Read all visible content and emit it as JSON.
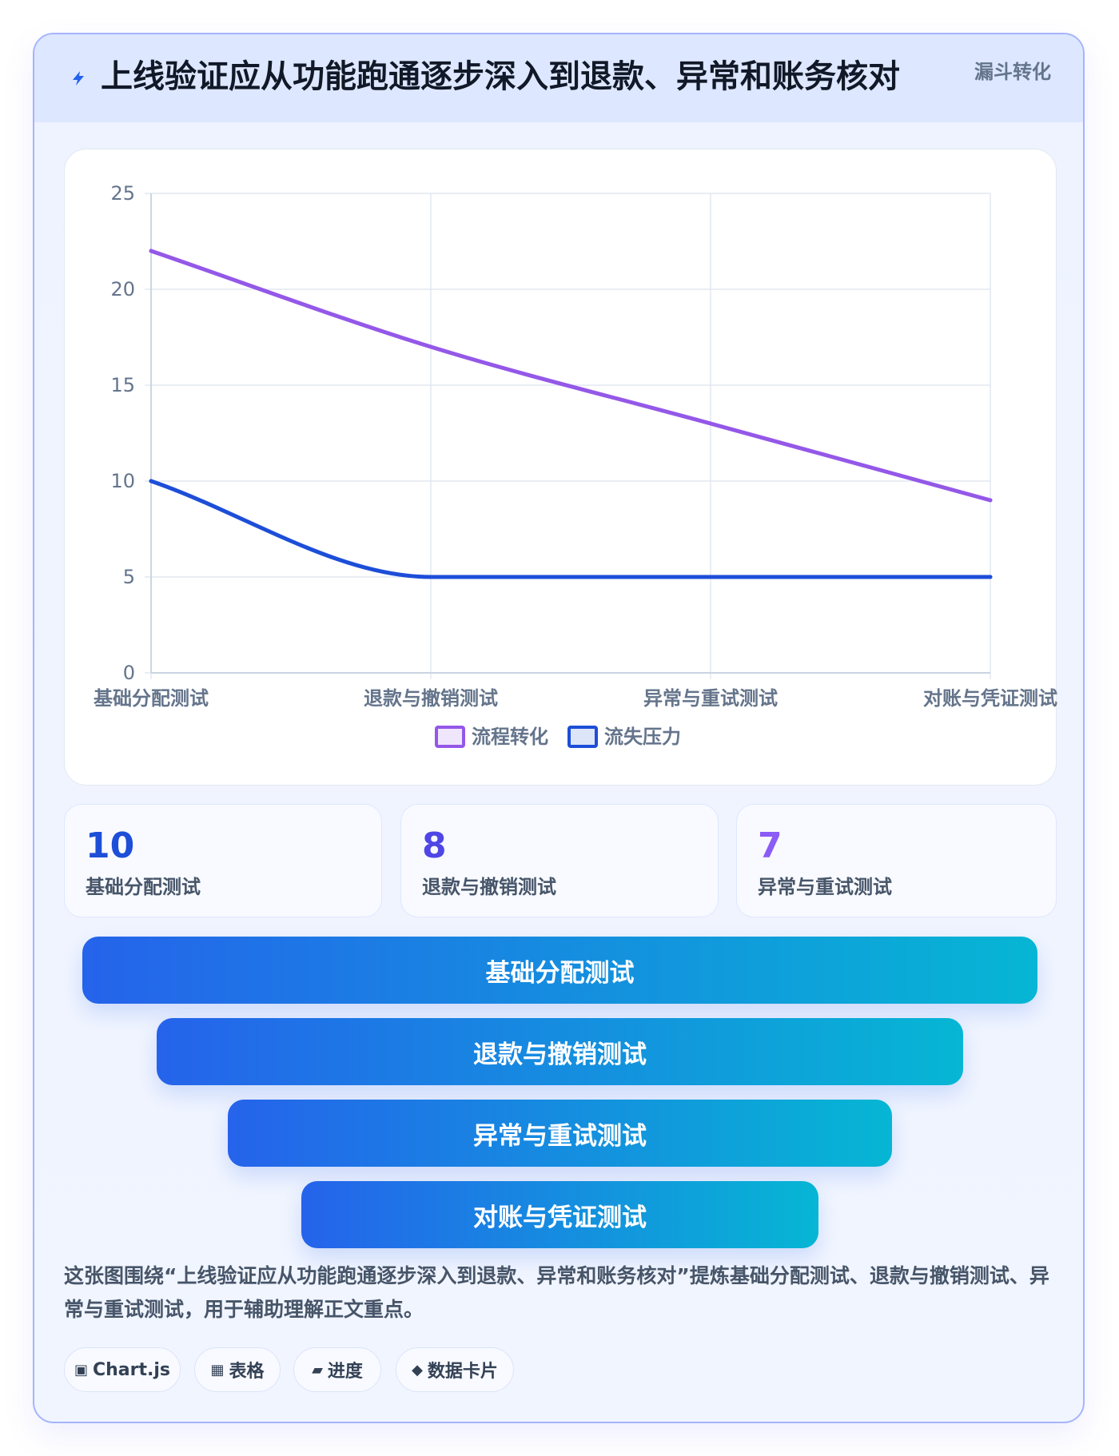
{
  "header": {
    "title": "上线验证应从功能跑通逐步深入到退款、异常和账务核对",
    "badge": "漏斗转化"
  },
  "chart_data": {
    "type": "line",
    "title": "",
    "xlabel": "",
    "ylabel": "",
    "categories": [
      "基础分配测试",
      "退款与撤销测试",
      "异常与重试测试",
      "对账与凭证测试"
    ],
    "series": [
      {
        "name": "流程转化",
        "values": [
          22,
          17,
          13,
          9
        ],
        "color": "#9458e8"
      },
      {
        "name": "流失压力",
        "values": [
          10,
          5,
          5,
          5
        ],
        "color": "#1d4ed8"
      }
    ],
    "ylim": [
      0,
      25
    ],
    "yticks": [
      0,
      5,
      10,
      15,
      20,
      25
    ],
    "grid": true,
    "legend": "bottom"
  },
  "stats": [
    {
      "value": "10",
      "label": "基础分配测试",
      "color": "#1d4ed8"
    },
    {
      "value": "8",
      "label": "退款与撤销测试",
      "color": "#4f46e5"
    },
    {
      "value": "7",
      "label": "异常与重试测试",
      "color": "#8b5cf6"
    }
  ],
  "funnel": [
    "基础分配测试",
    "退款与撤销测试",
    "异常与重试测试",
    "对账与凭证测试"
  ],
  "description": "这张图围绕“上线验证应从功能跑通逐步深入到退款、异常和账务核对”提炼基础分配测试、退款与撤销测试、异常与重试测试，用于辅助理解正文重点。",
  "chips": [
    {
      "icon": "▣",
      "label": "Chart.js"
    },
    {
      "icon": "▦",
      "label": "表格"
    },
    {
      "icon": "▰",
      "label": "进度"
    },
    {
      "icon": "◆",
      "label": "数据卡片"
    }
  ]
}
